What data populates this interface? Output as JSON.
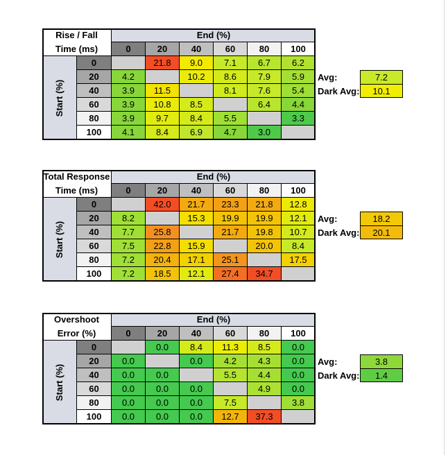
{
  "chart_data": [
    {
      "type": "heatmap",
      "title_lines": [
        "Rise / Fall",
        "Time (ms)"
      ],
      "xlabel": "End (%)",
      "ylabel": "Start (%)",
      "end_levels": [
        "0",
        "20",
        "40",
        "60",
        "80",
        "100"
      ],
      "start_levels": [
        "0",
        "20",
        "40",
        "60",
        "80",
        "100"
      ],
      "values": [
        [
          null,
          "21.8",
          "9.0",
          "7.1",
          "6.7",
          "6.2"
        ],
        [
          "4.2",
          null,
          "10.2",
          "8.6",
          "7.9",
          "5.9"
        ],
        [
          "3.9",
          "11.5",
          null,
          "8.1",
          "7.6",
          "5.4"
        ],
        [
          "3.9",
          "10.8",
          "8.5",
          null,
          "6.4",
          "4.4"
        ],
        [
          "3.9",
          "9.7",
          "8.4",
          "5.5",
          null,
          "3.3"
        ],
        [
          "4.1",
          "8.4",
          "6.9",
          "4.7",
          "3.0",
          null
        ]
      ],
      "colors": [
        [
          null,
          "#f24d24",
          "#f4ea00",
          "#c6e92a",
          "#b8e52e",
          "#b1e230"
        ],
        [
          "#88d63a",
          null,
          "#eaeb0a",
          "#d4ea1a",
          "#c6e92a",
          "#a6df34"
        ],
        [
          "#88d63a",
          "#f4e200",
          null,
          "#cfeb1e",
          "#c6e92a",
          "#9fde36"
        ],
        [
          "#88d63a",
          "#eaeb0a",
          "#d4ea1a",
          null,
          "#b8e52e",
          "#88d63a"
        ],
        [
          "#88d63a",
          "#e2eb10",
          "#d4ea1a",
          "#a0df35",
          null,
          "#4ec94a"
        ],
        [
          "#88d63a",
          "#d4ea1a",
          "#c0e72c",
          "#88d63a",
          "#4ec94a",
          null
        ]
      ],
      "avg_label": "Avg:",
      "avg_value": "7.2",
      "avg_color": "#c8ea28",
      "dark_avg_label": "Dark Avg:",
      "dark_avg_value": "10.1",
      "dark_avg_color": "#f0ee02"
    },
    {
      "type": "heatmap",
      "title_lines": [
        "Total Response",
        "Time (ms)"
      ],
      "xlabel": "End (%)",
      "ylabel": "Start (%)",
      "end_levels": [
        "0",
        "20",
        "40",
        "60",
        "80",
        "100"
      ],
      "start_levels": [
        "0",
        "20",
        "40",
        "60",
        "80",
        "100"
      ],
      "values": [
        [
          null,
          "42.0",
          "21.7",
          "23.3",
          "21.8",
          "12.8"
        ],
        [
          "8.2",
          null,
          "15.3",
          "19.9",
          "19.9",
          "12.1"
        ],
        [
          "7.7",
          "25.8",
          null,
          "21.7",
          "19.8",
          "10.7"
        ],
        [
          "7.5",
          "22.8",
          "15.9",
          null,
          "20.0",
          "8.4"
        ],
        [
          "7.2",
          "20.4",
          "17.1",
          "25.1",
          null,
          "17.5"
        ],
        [
          "7.2",
          "18.5",
          "12.1",
          "27.4",
          "34.7",
          null
        ]
      ],
      "colors": [
        [
          null,
          "#f24d24",
          "#f3aa10",
          "#f3a014",
          "#f3aa10",
          "#ede807"
        ],
        [
          "#a0df35",
          null,
          "#f3e000",
          "#f3c307",
          "#f3c307",
          "#e2eb10"
        ],
        [
          "#a0df35",
          "#f39020",
          null,
          "#f3aa10",
          "#f3c307",
          "#d4ea1a"
        ],
        [
          "#a0df35",
          "#f3a014",
          "#f4dd00",
          null,
          "#f3c307",
          "#c6e92a"
        ],
        [
          "#a0df35",
          "#f3b20d",
          "#f3d000",
          "#f3941c",
          null,
          "#f3d000"
        ],
        [
          "#a0df35",
          "#f3c307",
          "#e2eb10",
          "#f26f24",
          "#f24d24",
          null
        ]
      ],
      "avg_label": "Avg:",
      "avg_value": "18.2",
      "avg_color": "#f3c807",
      "dark_avg_label": "Dark Avg:",
      "dark_avg_value": "20.1",
      "dark_avg_color": "#f3bb0a"
    },
    {
      "type": "heatmap",
      "title_lines": [
        "Overshoot",
        "Error (%)"
      ],
      "xlabel": "End (%)",
      "ylabel": "Start (%)",
      "end_levels": [
        "0",
        "20",
        "40",
        "60",
        "80",
        "100"
      ],
      "start_levels": [
        "0",
        "20",
        "40",
        "60",
        "80",
        "100"
      ],
      "values": [
        [
          null,
          "0.0",
          "8.4",
          "11.3",
          "8.5",
          "0.0"
        ],
        [
          "0.0",
          null,
          "0.0",
          "4.2",
          "4.3",
          "0.0"
        ],
        [
          "0.0",
          "0.0",
          null,
          "5.5",
          "4.4",
          "0.0"
        ],
        [
          "0.0",
          "0.0",
          "0.0",
          null,
          "4.9",
          "0.0"
        ],
        [
          "0.0",
          "0.0",
          "0.0",
          "7.5",
          null,
          "3.8"
        ],
        [
          "0.0",
          "0.0",
          "0.0",
          "12.7",
          "37.3",
          null
        ]
      ],
      "colors": [
        [
          null,
          "#45c94f",
          "#d4ea1a",
          "#eced05",
          "#d4ea1a",
          "#45c94f"
        ],
        [
          "#45c94f",
          null,
          "#45c94f",
          "#a6df34",
          "#a6df34",
          "#45c94f"
        ],
        [
          "#45c94f",
          "#45c94f",
          null,
          "#b4e330",
          "#a6df34",
          "#45c94f"
        ],
        [
          "#45c94f",
          "#45c94f",
          "#45c94f",
          null,
          "#abe132",
          "#45c94f"
        ],
        [
          "#45c94f",
          "#45c94f",
          "#45c94f",
          "#c6e92a",
          null,
          "#9fde36"
        ],
        [
          "#45c94f",
          "#45c94f",
          "#45c94f",
          "#f3b50c",
          "#f24d24",
          null
        ]
      ],
      "avg_label": "Avg:",
      "avg_value": "3.8",
      "avg_color": "#8fd83a",
      "dark_avg_label": "Dark Avg:",
      "dark_avg_value": "1.4",
      "dark_avg_color": "#5ecd44"
    }
  ]
}
